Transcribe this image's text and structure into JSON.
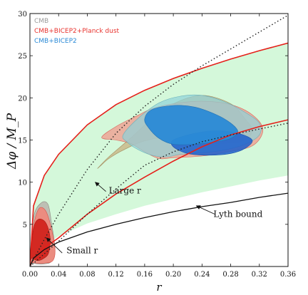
{
  "chart_data": {
    "type": "area",
    "xlabel": "r",
    "ylabel": "Δφ / M_P",
    "xlim": [
      0.0,
      0.36
    ],
    "ylim": [
      0,
      30
    ],
    "xticks": [
      "0.00",
      "0.04",
      "0.08",
      "0.12",
      "0.16",
      "0.20",
      "0.24",
      "0.28",
      "0.32",
      "0.36"
    ],
    "yticks": [
      "5",
      "10",
      "15",
      "20",
      "25",
      "30"
    ],
    "legend_position": "top-left",
    "legend": [
      {
        "label": "CMB",
        "color": "#999999"
      },
      {
        "label": "CMB+BICEP2+Planck dust",
        "color": "#e8322d"
      },
      {
        "label": "CMB+BICEP2",
        "color": "#2a8ad6"
      }
    ],
    "band_lower": {
      "x": [
        0.0,
        0.005,
        0.02,
        0.04,
        0.08,
        0.12,
        0.16,
        0.2,
        0.24,
        0.28,
        0.32,
        0.36
      ],
      "y": [
        0.0,
        1.2,
        2.5,
        3.6,
        5.1,
        6.2,
        7.2,
        8.0,
        8.8,
        9.5,
        10.2,
        10.8
      ]
    },
    "band_upper": {
      "x": [
        0.0,
        0.005,
        0.02,
        0.04,
        0.08,
        0.12,
        0.16,
        0.2,
        0.24,
        0.28,
        0.32,
        0.36
      ],
      "y": [
        0.0,
        7.2,
        10.8,
        13.3,
        16.8,
        19.2,
        20.9,
        22.3,
        23.5,
        24.6,
        25.6,
        26.5
      ]
    },
    "red_curve_lower": {
      "x": [
        0.0,
        0.005,
        0.02,
        0.04,
        0.08,
        0.12,
        0.16,
        0.2,
        0.24,
        0.28,
        0.32,
        0.36
      ],
      "y": [
        0.0,
        0.9,
        2.2,
        3.4,
        6.2,
        8.6,
        10.6,
        12.5,
        14.2,
        15.6,
        16.6,
        17.4
      ]
    },
    "lyth_bound": {
      "x": [
        0.0,
        0.005,
        0.02,
        0.04,
        0.08,
        0.12,
        0.16,
        0.2,
        0.24,
        0.28,
        0.32,
        0.36
      ],
      "y": [
        0.0,
        1.0,
        2.0,
        2.9,
        4.1,
        5.0,
        5.8,
        6.5,
        7.1,
        7.6,
        8.2,
        8.7
      ]
    },
    "dotted_large_r": {
      "x": [
        0.0,
        0.02,
        0.04,
        0.08,
        0.12,
        0.16,
        0.2,
        0.24,
        0.28,
        0.32,
        0.36
      ],
      "y": [
        0.0,
        1.5,
        3.0,
        6.2,
        9.2,
        12.0,
        13.6,
        14.8,
        15.6,
        16.3,
        17.0
      ]
    },
    "dotted_small_r": {
      "x": [
        0.0,
        0.02,
        0.04,
        0.08,
        0.12,
        0.16,
        0.2,
        0.24,
        0.28,
        0.32,
        0.36
      ],
      "y": [
        0.0,
        3.2,
        6.2,
        11.5,
        15.8,
        19.0,
        21.6,
        23.8,
        25.8,
        27.8,
        29.8
      ]
    },
    "contours": {
      "cmb_small_r_outer": {
        "x": [
          0.0,
          0.005,
          0.015,
          0.025,
          0.03,
          0.035,
          0.03,
          0.02,
          0.01,
          0.0
        ],
        "y": [
          0.5,
          5.8,
          7.5,
          7.4,
          5.2,
          2.0,
          0.6,
          0.3,
          0.3,
          0.5
        ]
      },
      "red_small_r_outer": {
        "x": [
          0.0,
          0.004,
          0.012,
          0.022,
          0.03,
          0.035,
          0.032,
          0.02,
          0.01,
          0.0
        ],
        "y": [
          0.5,
          4.3,
          6.8,
          6.6,
          4.5,
          2.0,
          0.7,
          0.4,
          0.4,
          0.5
        ]
      },
      "red_small_r_inner": {
        "x": [
          0.001,
          0.005,
          0.012,
          0.022,
          0.028,
          0.026,
          0.018,
          0.01,
          0.003
        ],
        "y": [
          1.0,
          4.5,
          5.6,
          5.2,
          3.5,
          1.6,
          0.9,
          0.7,
          1.0
        ]
      },
      "tan_large": {
        "x": [
          0.095,
          0.11,
          0.14,
          0.17,
          0.2,
          0.24,
          0.28,
          0.3,
          0.31,
          0.3,
          0.27,
          0.24,
          0.2,
          0.16,
          0.13,
          0.11,
          0.098
        ],
        "y": [
          11.7,
          13.0,
          15.2,
          17.5,
          19.3,
          20.3,
          19.3,
          17.5,
          16.2,
          15.0,
          14.6,
          14.8,
          15.4,
          14.9,
          13.8,
          12.8,
          11.9
        ]
      },
      "red_large_outer": {
        "x": [
          0.1,
          0.12,
          0.15,
          0.17,
          0.2,
          0.24,
          0.28,
          0.31,
          0.325,
          0.31,
          0.27,
          0.24,
          0.2,
          0.18,
          0.16,
          0.14,
          0.12
        ],
        "y": [
          15.3,
          16.6,
          17.9,
          18.7,
          19.3,
          19.6,
          19.2,
          18.0,
          16.2,
          14.3,
          13.5,
          13.1,
          12.9,
          12.8,
          13.6,
          14.6,
          15.0
        ]
      },
      "cyan_large_outer": {
        "x": [
          0.13,
          0.15,
          0.18,
          0.21,
          0.24,
          0.27,
          0.3,
          0.32,
          0.32,
          0.3,
          0.27,
          0.24,
          0.21,
          0.19,
          0.17,
          0.15,
          0.135
        ],
        "y": [
          15.6,
          17.5,
          19.4,
          20.2,
          20.3,
          19.6,
          18.3,
          17.0,
          15.6,
          14.5,
          13.8,
          13.5,
          13.3,
          13.0,
          13.2,
          13.9,
          14.8
        ]
      },
      "blue_large_inner": {
        "x": [
          0.16,
          0.17,
          0.2,
          0.23,
          0.26,
          0.28,
          0.29,
          0.28,
          0.26,
          0.23,
          0.2,
          0.18,
          0.165
        ],
        "y": [
          17.5,
          18.6,
          19.1,
          18.9,
          18.0,
          17.0,
          16.0,
          15.2,
          14.8,
          14.5,
          14.5,
          15.2,
          16.5
        ]
      },
      "blue_large_lower": {
        "x": [
          0.2,
          0.23,
          0.26,
          0.29,
          0.31,
          0.3,
          0.28,
          0.25,
          0.22,
          0.2
        ],
        "y": [
          15.0,
          15.8,
          16.1,
          15.8,
          15.0,
          14.0,
          13.4,
          13.2,
          13.4,
          14.2
        ]
      }
    },
    "annotations": [
      {
        "text": "Large r",
        "x": 0.104,
        "y": 9.0
      },
      {
        "text": "Lyth bound",
        "x": 0.25,
        "y": 6.2
      },
      {
        "text": "Small r",
        "x": 0.045,
        "y": 1.9
      }
    ]
  }
}
